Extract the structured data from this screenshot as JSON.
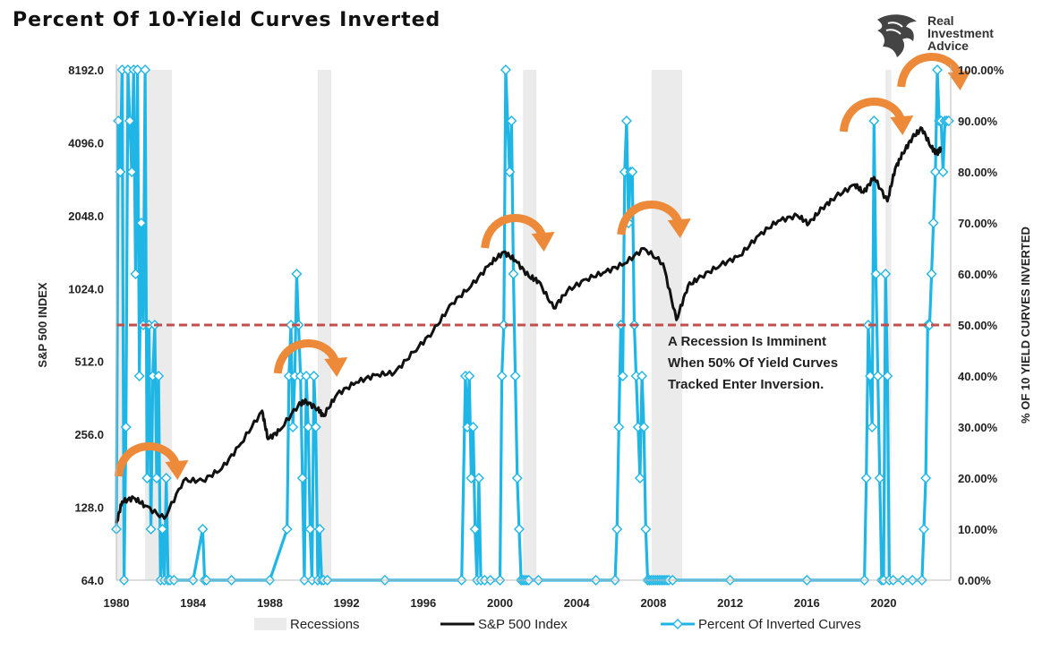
{
  "title": "Percent Of 10-Yield Curves Inverted",
  "logo": {
    "lines": [
      "Real",
      "Investment",
      "Advice"
    ]
  },
  "chart_data": {
    "type": "line",
    "xlim": [
      1980,
      2023.5
    ],
    "x_ticks": [
      "1980",
      "1984",
      "1988",
      "1992",
      "1996",
      "2000",
      "2004",
      "2008",
      "2012",
      "2016",
      "2020"
    ],
    "y_left": {
      "label": "S&P 500 INDEX",
      "scale": "log2",
      "lim": [
        64,
        8192
      ],
      "ticks": [
        "64.0",
        "128.0",
        "256.0",
        "512.0",
        "1024.0",
        "2048.0",
        "4096.0",
        "8192.0"
      ]
    },
    "y_right": {
      "label": "% OF 10 YIELD CURVES INVERTED",
      "lim": [
        0,
        100
      ],
      "ticks": [
        "0.00%",
        "10.00%",
        "20.00%",
        "30.00%",
        "40.00%",
        "50.00%",
        "60.00%",
        "70.00%",
        "80.00%",
        "90.00%",
        "100.00%"
      ]
    },
    "threshold": 50,
    "recessions": [
      [
        1980.0,
        1980.5
      ],
      [
        1981.5,
        1982.9
      ],
      [
        1990.5,
        1991.2
      ],
      [
        2001.2,
        2001.9
      ],
      [
        2007.9,
        2009.5
      ],
      [
        2020.1,
        2020.4
      ]
    ],
    "series": [
      {
        "name": "S&P 500 Index",
        "color": "#111111",
        "x": [
          1980.0,
          1980.3,
          1980.9,
          1981.5,
          1982.5,
          1983.5,
          1984.5,
          1985.5,
          1986.5,
          1987.6,
          1987.9,
          1988.5,
          1989.5,
          1989.9,
          1990.5,
          1990.8,
          1991.5,
          1992.5,
          1993.5,
          1994.5,
          1995.5,
          1996.5,
          1997.5,
          1998.5,
          1999.5,
          2000.2,
          2000.8,
          2001.5,
          2002.0,
          2002.8,
          2003.5,
          2004.5,
          2005.5,
          2006.5,
          2007.5,
          2008.5,
          2009.2,
          2009.8,
          2010.5,
          2011.5,
          2012.5,
          2013.5,
          2014.5,
          2015.5,
          2016.1,
          2016.8,
          2017.5,
          2018.5,
          2018.95,
          2019.5,
          2020.2,
          2020.6,
          2021.0,
          2021.5,
          2022.0,
          2022.5,
          2022.8,
          2023.0
        ],
        "y": [
          110,
          135,
          140,
          130,
          115,
          165,
          165,
          185,
          235,
          320,
          245,
          265,
          340,
          350,
          325,
          305,
          375,
          420,
          450,
          460,
          560,
          680,
          890,
          1050,
          1300,
          1450,
          1340,
          1150,
          1100,
          850,
          1000,
          1120,
          1200,
          1300,
          1500,
          1300,
          760,
          1050,
          1150,
          1280,
          1400,
          1700,
          1950,
          2050,
          1900,
          2200,
          2450,
          2750,
          2550,
          2950,
          2350,
          3200,
          3700,
          4300,
          4700,
          3900,
          3700,
          3900
        ]
      },
      {
        "name": "Percent Of Inverted Curves",
        "color": "#1fb6e6",
        "x": [
          1980.0,
          1980.1,
          1980.2,
          1980.3,
          1980.4,
          1980.5,
          1980.6,
          1980.7,
          1980.8,
          1980.9,
          1981.0,
          1981.1,
          1981.2,
          1981.3,
          1981.4,
          1981.5,
          1981.6,
          1981.7,
          1981.8,
          1981.9,
          1982.0,
          1982.1,
          1982.2,
          1982.3,
          1982.4,
          1982.5,
          1982.6,
          1982.7,
          1982.8,
          1983.0,
          1984.0,
          1984.5,
          1984.6,
          1984.7,
          1986.0,
          1988.0,
          1988.9,
          1989.0,
          1989.1,
          1989.2,
          1989.3,
          1989.4,
          1989.5,
          1989.6,
          1989.7,
          1989.8,
          1989.9,
          1990.0,
          1990.1,
          1990.2,
          1990.3,
          1990.4,
          1990.5,
          1990.6,
          1990.7,
          1990.8,
          1991.0,
          1994.0,
          1998.0,
          1998.2,
          1998.3,
          1998.4,
          1998.5,
          1998.6,
          1998.7,
          1998.8,
          1998.9,
          1999.0,
          1999.2,
          1999.5,
          2000.0,
          2000.1,
          2000.2,
          2000.3,
          2000.5,
          2000.6,
          2000.7,
          2000.8,
          2000.9,
          2001.0,
          2001.1,
          2001.2,
          2001.3,
          2001.4,
          2001.5,
          2002.0,
          2005.0,
          2006.0,
          2006.1,
          2006.2,
          2006.3,
          2006.4,
          2006.5,
          2006.6,
          2006.7,
          2006.8,
          2006.9,
          2007.0,
          2007.1,
          2007.2,
          2007.3,
          2007.4,
          2007.5,
          2007.6,
          2007.7,
          2007.8,
          2007.9,
          2008.0,
          2008.1,
          2008.2,
          2008.3,
          2008.4,
          2008.5,
          2008.6,
          2008.7,
          2008.8,
          2009.0,
          2012.0,
          2016.0,
          2019.0,
          2019.1,
          2019.2,
          2019.3,
          2019.4,
          2019.5,
          2019.6,
          2019.7,
          2019.8,
          2019.9,
          2020.0,
          2020.1,
          2020.2,
          2020.3,
          2020.5,
          2021.0,
          2021.5,
          2022.0,
          2022.1,
          2022.2,
          2022.3,
          2022.4,
          2022.5,
          2022.6,
          2022.7,
          2022.8,
          2022.9,
          2023.0,
          2023.1,
          2023.2,
          2023.3,
          2023.4
        ],
        "y": [
          10,
          90,
          80,
          100,
          0,
          30,
          100,
          90,
          80,
          100,
          60,
          100,
          40,
          70,
          50,
          100,
          20,
          50,
          10,
          40,
          50,
          20,
          40,
          0,
          10,
          0,
          20,
          0,
          0,
          0,
          0,
          10,
          0,
          0,
          0,
          0,
          10,
          40,
          50,
          30,
          40,
          60,
          50,
          40,
          20,
          0,
          40,
          30,
          10,
          0,
          40,
          30,
          0,
          10,
          0,
          0,
          0,
          0,
          0,
          40,
          30,
          40,
          20,
          30,
          10,
          0,
          20,
          0,
          0,
          0,
          0,
          40,
          50,
          100,
          80,
          90,
          60,
          40,
          20,
          10,
          0,
          0,
          0,
          0,
          0,
          0,
          0,
          0,
          10,
          30,
          50,
          40,
          80,
          90,
          70,
          80,
          80,
          50,
          40,
          30,
          20,
          40,
          30,
          10,
          0,
          0,
          0,
          0,
          0,
          0,
          0,
          0,
          0,
          0,
          0,
          0,
          0,
          0,
          0,
          0,
          20,
          50,
          40,
          30,
          90,
          60,
          40,
          20,
          0,
          0,
          60,
          40,
          0,
          0,
          0,
          0,
          0,
          10,
          20,
          50,
          50,
          60,
          70,
          80,
          100,
          90,
          90,
          80,
          90,
          90,
          90
        ]
      }
    ],
    "annotation": [
      "A Recession Is Imminent",
      "When 50% Of Yield Curves",
      "Tracked Enter Inversion."
    ],
    "peak_arrows_x": [
      1981.7,
      1990.0,
      2000.8,
      2007.9,
      2019.5,
      2022.5
    ],
    "legend": {
      "position": "bottom",
      "items": [
        "Recessions",
        "S&P 500 Index",
        "Percent Of Inverted Curves"
      ]
    },
    "colors": {
      "recession": "#ebebeb",
      "sp500": "#111111",
      "inverted": "#1fb6e6",
      "threshold": "#c0504d",
      "arrow": "#ec8a3a"
    }
  }
}
